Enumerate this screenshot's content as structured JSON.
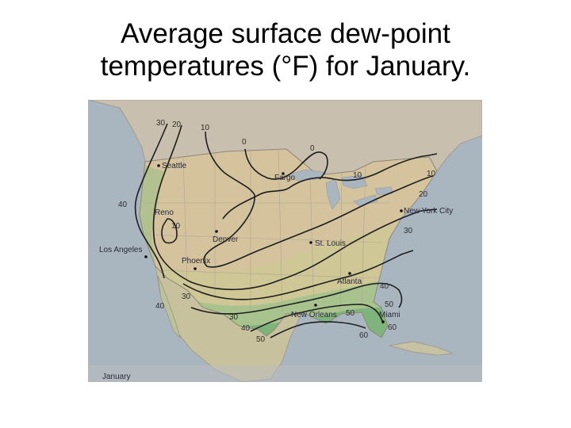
{
  "title": {
    "line1": "Average surface dew-point",
    "line2": "temperatures (°F) for January."
  },
  "map": {
    "month": "January",
    "isotherm_labels": {
      "l30a": "30",
      "l20a": "20",
      "l10a": "10",
      "l0a": "0",
      "l0b": "0",
      "l10b": "10",
      "l10c": "10",
      "l20b": "20",
      "l30b": "30",
      "l40a": "40",
      "l40b": "40",
      "l40c": "40",
      "l40d": "40",
      "l10reno": "10",
      "l30c": "30",
      "l30d": "30",
      "l50a": "50",
      "l50b": "50",
      "l50c": "50",
      "l60a": "60",
      "l60b": "60"
    },
    "cities": {
      "seattle": "Seattle",
      "fargo": "Fargo",
      "reno": "Reno",
      "denver": "Denver",
      "los_angeles": "Los Angeles",
      "phoenix": "Phoenix",
      "st_louis": "St. Louis",
      "new_york": "New York City",
      "atlanta": "Atlanta",
      "new_orleans": "New Orleans",
      "miami": "Miami"
    },
    "colors": {
      "ocean": "#a9b5bf",
      "land_north": "#c9bfaf",
      "band_dry": "#dbc7a6",
      "band_mid": "#cfc796",
      "band_moist": "#a8c38d",
      "band_wet": "#7fb37c"
    }
  }
}
